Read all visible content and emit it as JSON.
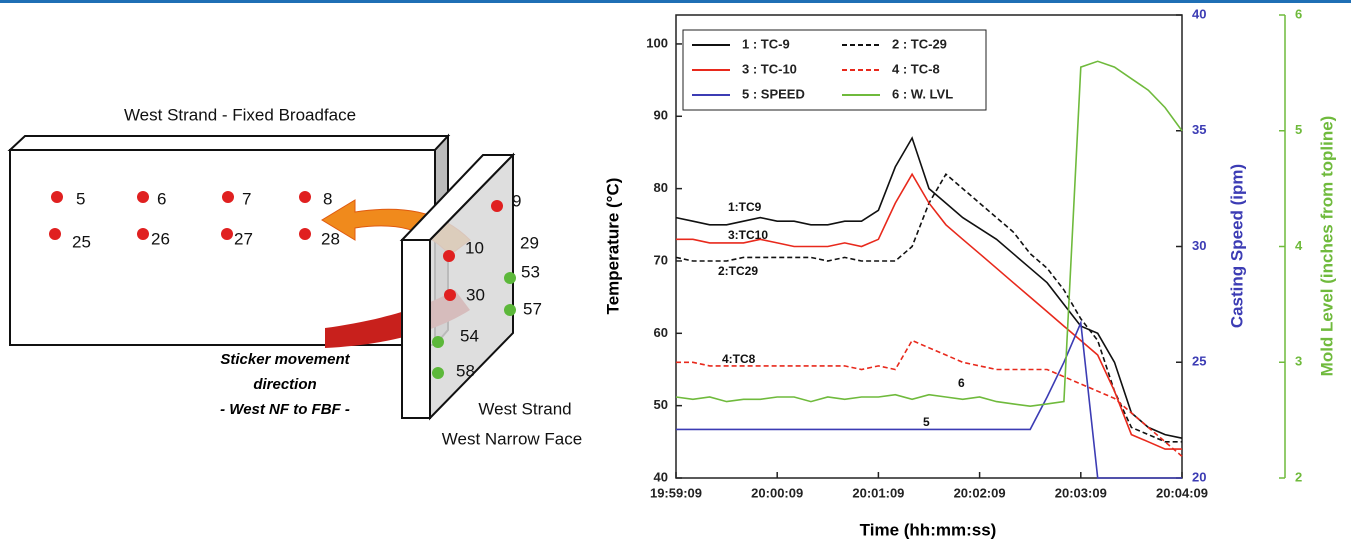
{
  "diagram": {
    "title": "West Strand - Fixed Broadface",
    "broadface_points": [
      "5",
      "6",
      "7",
      "8",
      "25",
      "26",
      "27",
      "28"
    ],
    "narrowface_points": [
      "9",
      "29",
      "10",
      "30",
      "53",
      "57",
      "54",
      "58"
    ],
    "caption_lines": [
      "Sticker movement",
      "direction",
      "- West NF to FBF -"
    ],
    "strand_labels": [
      "West Strand",
      "West Narrow Face"
    ]
  },
  "chart_data": {
    "type": "line",
    "xlabel": "Time (hh:mm:ss)",
    "ylabel": "Temperature (°C)",
    "y2label": "Casting Speed (ipm)",
    "y3label": "Mold Level (inches from topline)",
    "x": [
      "19:59:09",
      "19:59:19",
      "19:59:29",
      "19:59:39",
      "19:59:49",
      "19:59:59",
      "20:00:09",
      "20:00:19",
      "20:00:29",
      "20:00:39",
      "20:00:49",
      "20:00:59",
      "20:01:09",
      "20:01:19",
      "20:01:29",
      "20:01:39",
      "20:01:49",
      "20:01:59",
      "20:02:09",
      "20:02:19",
      "20:02:29",
      "20:02:39",
      "20:02:49",
      "20:02:59",
      "20:03:09",
      "20:03:19",
      "20:03:29",
      "20:03:39",
      "20:03:49",
      "20:03:59",
      "20:04:09"
    ],
    "xlim": [
      "19:59:09",
      "20:04:09"
    ],
    "xticks": [
      "19:59:09",
      "20:00:09",
      "20:01:09",
      "20:02:09",
      "20:03:09",
      "20:04:09"
    ],
    "ylim": [
      40,
      104
    ],
    "yticks": [
      40,
      50,
      60,
      70,
      80,
      90,
      100
    ],
    "y2lim": [
      20,
      40
    ],
    "y2ticks": [
      20,
      25,
      30,
      35,
      40
    ],
    "y3lim": [
      2,
      6
    ],
    "y3ticks": [
      2,
      3,
      4,
      5,
      6
    ],
    "y2color": "#3c3cb4",
    "y3color": "#6fba3c",
    "series": [
      {
        "name": "1 : TC-9",
        "color": "#111111",
        "dash": false,
        "values": [
          76,
          75.5,
          75,
          75,
          75.5,
          76,
          75.5,
          75.5,
          75,
          75,
          75.5,
          75.5,
          77,
          83,
          87,
          80,
          78,
          76,
          74.5,
          73,
          71,
          69,
          67,
          64,
          61,
          60,
          56,
          49,
          47,
          46,
          45.5
        ]
      },
      {
        "name": "2 : TC-29",
        "color": "#111111",
        "dash": true,
        "values": [
          70.5,
          70,
          70,
          70,
          70.5,
          70.5,
          70.5,
          70.5,
          70.5,
          70,
          70.5,
          70,
          70,
          70,
          72,
          78,
          82,
          80,
          78,
          76,
          74,
          71,
          69,
          66,
          62,
          59,
          52,
          47,
          46,
          45,
          45
        ]
      },
      {
        "name": "3 : TC-10",
        "color": "#e8291c",
        "dash": false,
        "values": [
          73,
          73,
          72.5,
          72.5,
          72.5,
          73,
          72.5,
          72,
          72,
          72,
          72.5,
          72,
          73,
          78,
          82,
          78,
          75,
          73,
          71,
          69,
          67,
          65,
          63,
          61,
          59,
          57,
          52,
          46,
          45,
          44,
          44
        ]
      },
      {
        "name": "4 : TC-8",
        "color": "#e8291c",
        "dash": true,
        "values": [
          56,
          56,
          55.5,
          55.5,
          55.5,
          55.5,
          55.5,
          55.5,
          55.5,
          55.5,
          55.5,
          55,
          55.5,
          55,
          59,
          58,
          57,
          56,
          55.5,
          55,
          55,
          55,
          55,
          54,
          53,
          52,
          51,
          49,
          47,
          45,
          43
        ]
      },
      {
        "name": "5 : SPEED",
        "color": "#3c3cb4",
        "dash": false,
        "axis": "y2",
        "values": [
          22.1,
          22.1,
          22.1,
          22.1,
          22.1,
          22.1,
          22.1,
          22.1,
          22.1,
          22.1,
          22.1,
          22.1,
          22.1,
          22.1,
          22.1,
          22.1,
          22.1,
          22.1,
          22.1,
          22.1,
          22.1,
          22.1,
          23.5,
          25,
          26.7,
          20,
          20,
          20,
          20,
          20,
          20
        ]
      },
      {
        "name": "6 : W. LVL",
        "color": "#6fba3c",
        "dash": false,
        "axis": "y3",
        "values": [
          2.7,
          2.68,
          2.7,
          2.66,
          2.68,
          2.68,
          2.7,
          2.7,
          2.66,
          2.7,
          2.68,
          2.7,
          2.7,
          2.72,
          2.68,
          2.72,
          2.7,
          2.68,
          2.7,
          2.66,
          2.64,
          2.62,
          2.64,
          2.66,
          5.55,
          5.6,
          5.55,
          5.45,
          5.35,
          5.2,
          5.0
        ]
      }
    ],
    "annotations": [
      "1:TC9",
      "3:TC10",
      "2:TC29",
      "4:TC8",
      "6",
      "5"
    ]
  }
}
